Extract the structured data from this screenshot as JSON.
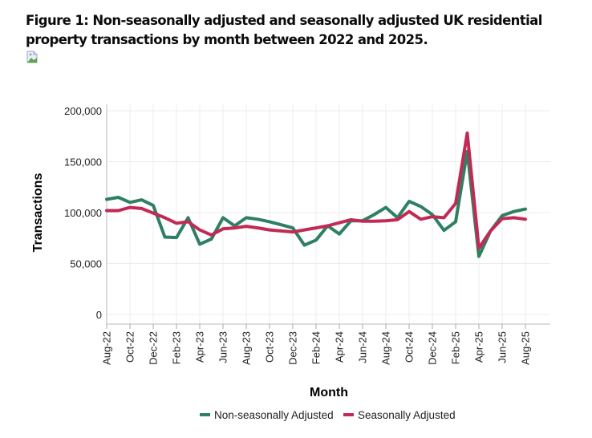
{
  "figure": {
    "title": "Figure 1: Non-seasonally adjusted and seasonally adjusted UK residential property transactions by month between 2022 and 2025.",
    "broken_image_icon": "broken-image-icon"
  },
  "chart_data": {
    "type": "line",
    "title": "Figure 1: Non-seasonally adjusted and seasonally adjusted UK residential property transactions by month between 2022 and 2025.",
    "xlabel": "Month",
    "ylabel": "Transactions",
    "ylim": [
      0,
      200000
    ],
    "yticks": [
      0,
      50000,
      100000,
      150000,
      200000
    ],
    "ytick_labels": [
      "0",
      "50,000",
      "100,000",
      "150,000",
      "200,000"
    ],
    "grid": true,
    "legend_position": "bottom",
    "x": [
      "Aug-22",
      "Sep-22",
      "Oct-22",
      "Nov-22",
      "Dec-22",
      "Jan-23",
      "Feb-23",
      "Mar-23",
      "Apr-23",
      "May-23",
      "Jun-23",
      "Jul-23",
      "Aug-23",
      "Sep-23",
      "Oct-23",
      "Nov-23",
      "Dec-23",
      "Jan-24",
      "Feb-24",
      "Mar-24",
      "Apr-24",
      "May-24",
      "Jun-24",
      "Jul-24",
      "Aug-24",
      "Sep-24",
      "Oct-24",
      "Nov-24",
      "Dec-24",
      "Jan-25",
      "Feb-25",
      "Mar-25",
      "Apr-25",
      "May-25",
      "Jun-25",
      "Jul-25",
      "Aug-25"
    ],
    "xtick_labels": [
      "Aug-22",
      "Oct-22",
      "Dec-22",
      "Feb-23",
      "Apr-23",
      "Jun-23",
      "Aug-23",
      "Oct-23",
      "Dec-23",
      "Feb-24",
      "Apr-24",
      "Jun-24",
      "Aug-24",
      "Oct-24",
      "Dec-24",
      "Feb-25",
      "Apr-25",
      "Jun-25",
      "Aug-25"
    ],
    "series": [
      {
        "name": "Non-seasonally Adjusted",
        "color": "#2e8062",
        "values": [
          113000,
          115000,
          110000,
          112500,
          107000,
          76000,
          75500,
          95000,
          69000,
          74000,
          95000,
          87000,
          95000,
          93500,
          91000,
          88000,
          85000,
          68000,
          73000,
          87000,
          79000,
          92000,
          92000,
          98000,
          105000,
          95000,
          111000,
          106000,
          98000,
          82500,
          91000,
          160000,
          57000,
          82000,
          97000,
          101000,
          103500
        ]
      },
      {
        "name": "Seasonally Adjusted",
        "color": "#c22a55",
        "values": [
          102000,
          102000,
          105000,
          104000,
          99500,
          95000,
          89500,
          91000,
          83000,
          78000,
          84000,
          85000,
          86500,
          85000,
          83000,
          82000,
          81000,
          83000,
          85000,
          87000,
          90000,
          93000,
          91500,
          91500,
          92000,
          93000,
          101000,
          93500,
          96000,
          95000,
          109000,
          178000,
          65000,
          82000,
          94000,
          95000,
          93500
        ]
      }
    ]
  }
}
